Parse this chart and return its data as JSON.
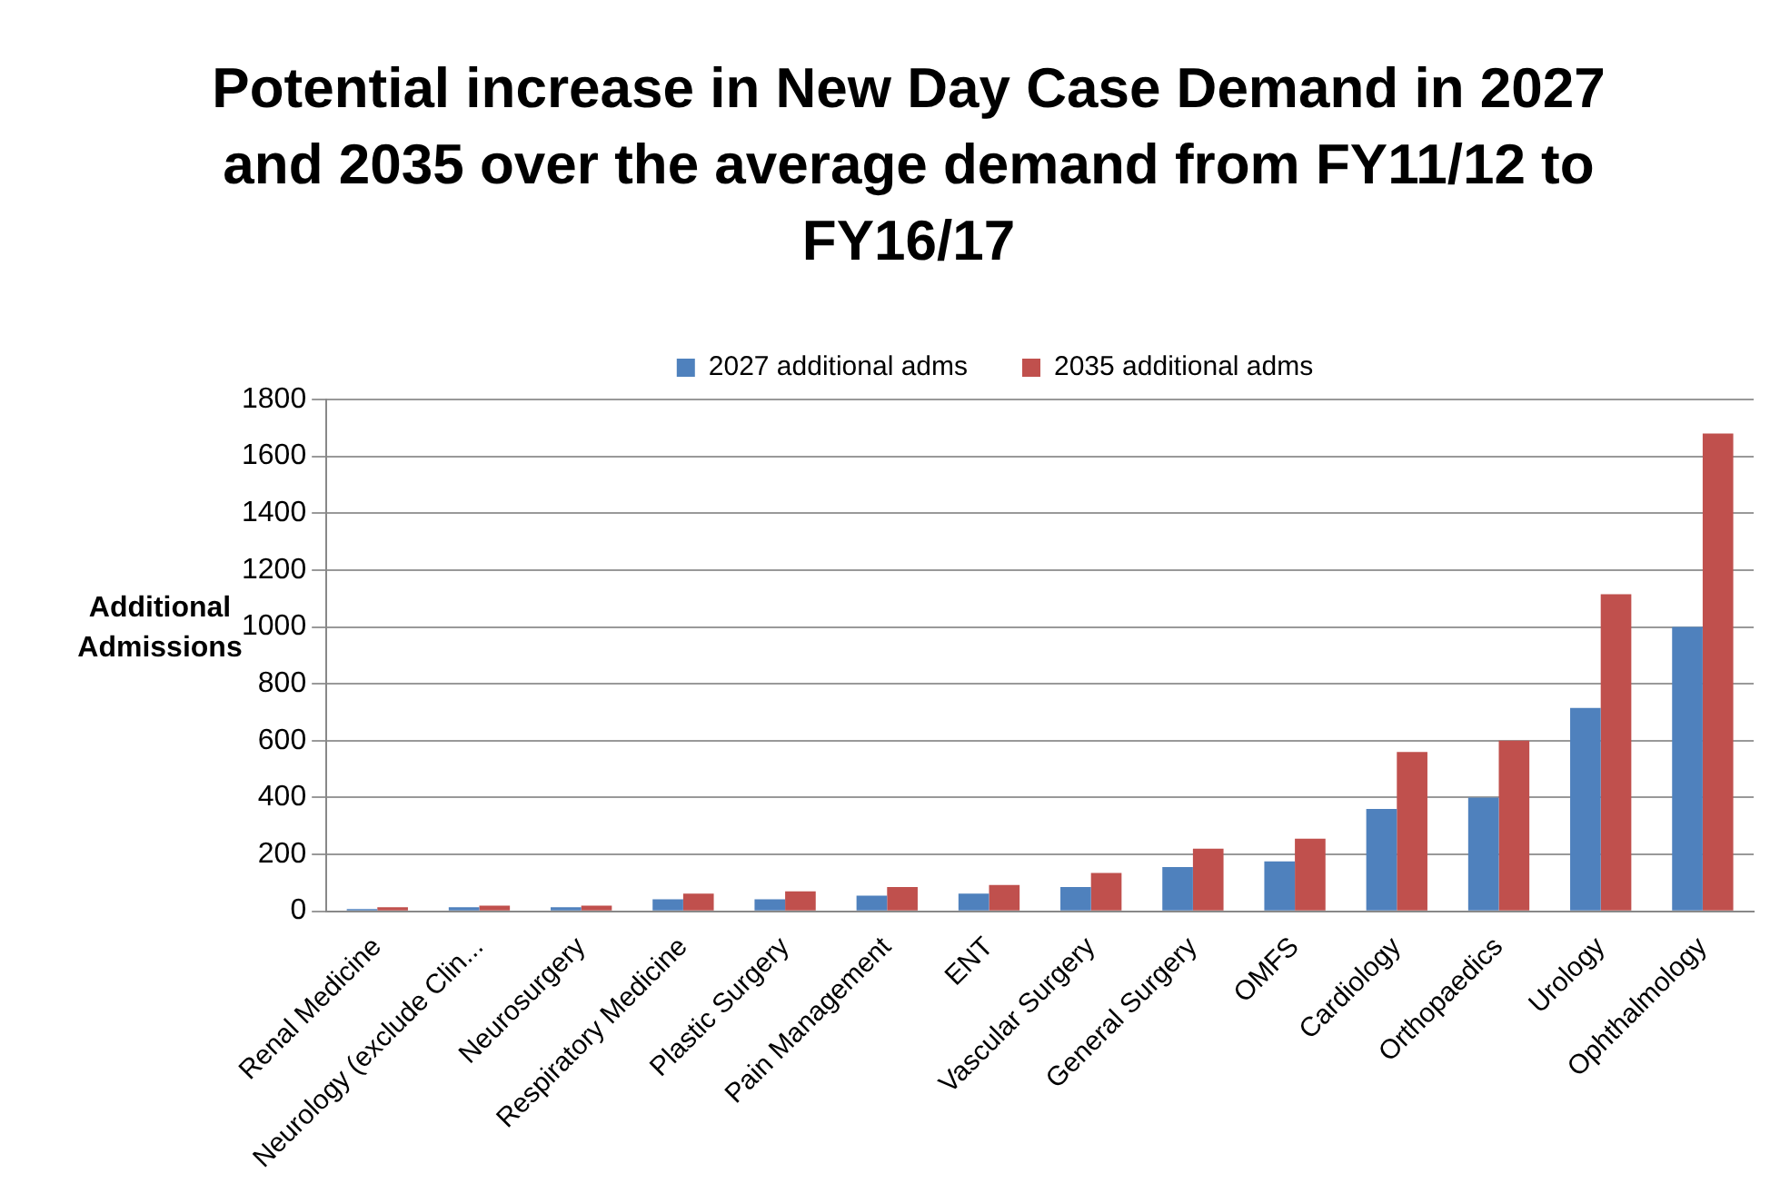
{
  "chart_data": {
    "type": "bar",
    "title": "Potential increase in New Day Case Demand in 2027 and 2035 over the average demand from FY11/12 to FY16/17",
    "ylabel": "Additional Admissions",
    "categories": [
      "Renal Medicine",
      "Neurology (exclude Clin...",
      "Neurosurgery",
      "Respiratory Medicine",
      "Plastic Surgery",
      "Pain Management",
      "ENT",
      "Vascular Surgery",
      "General Surgery",
      "OMFS",
      "Cardiology",
      "Orthopaedics",
      "Urology",
      "Ophthalmology"
    ],
    "series": [
      {
        "name": "2027 additional adms",
        "color": "#4f81bd",
        "values": [
          8,
          14,
          14,
          42,
          42,
          55,
          62,
          85,
          155,
          175,
          360,
          400,
          715,
          1000
        ]
      },
      {
        "name": "2035 additional adms",
        "color": "#c0504d",
        "values": [
          14,
          20,
          20,
          62,
          70,
          85,
          92,
          135,
          220,
          255,
          560,
          600,
          1115,
          1680
        ]
      }
    ],
    "ylim": [
      0,
      1800
    ],
    "yticks": [
      0,
      200,
      400,
      600,
      800,
      1000,
      1200,
      1400,
      1600,
      1800
    ],
    "grid": "y",
    "legend": "top"
  }
}
